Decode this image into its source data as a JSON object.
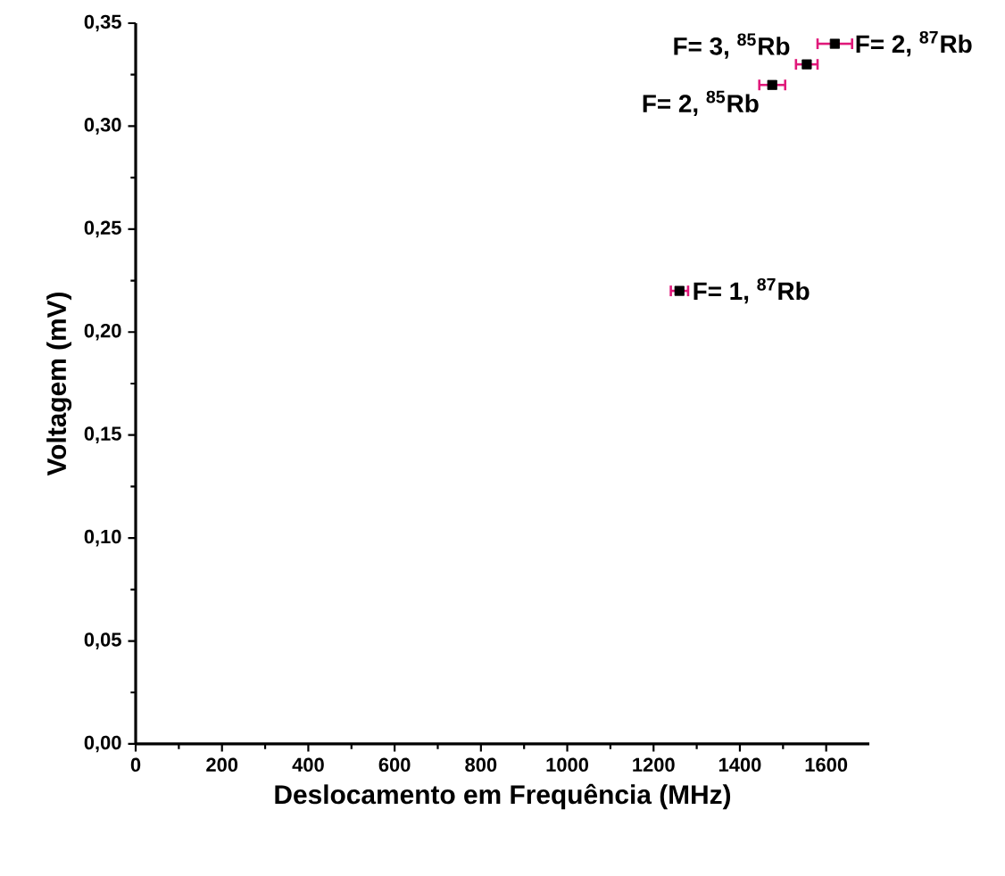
{
  "chart_data": {
    "type": "scatter",
    "xlabel": "Deslocamento em Frequência (MHz)",
    "ylabel": "Voltagem (mV)",
    "x": [
      1260,
      1475,
      1555,
      1620
    ],
    "values": [
      0.22,
      0.32,
      0.33,
      0.34
    ],
    "xerrors": [
      20,
      30,
      25,
      40
    ],
    "color": "#000000",
    "marker": "square",
    "xlim": [
      0,
      1700
    ],
    "ylim": [
      0,
      0.35
    ],
    "xticks": [
      0,
      200,
      400,
      600,
      800,
      1000,
      1200,
      1400,
      1600
    ],
    "yticks": [
      {
        "value": 0,
        "label": "0,00"
      },
      {
        "value": 0.05,
        "label": "0,05"
      },
      {
        "value": 0.1,
        "label": "0,10"
      },
      {
        "value": 0.15,
        "label": "0,15"
      },
      {
        "value": 0.2,
        "label": "0,20"
      },
      {
        "value": 0.25,
        "label": "0,25"
      },
      {
        "value": 0.3,
        "label": "0,30"
      },
      {
        "value": 0.35,
        "label": "0,35"
      }
    ],
    "annotations": [
      {
        "text": "F= 1, $^{87}$Rb",
        "x": 1260,
        "y": 0.22
      },
      {
        "text": "F= 2, $^{85}$Rb",
        "x": 1475,
        "y": 0.32
      },
      {
        "text": "F= 3, $^{85}$Rb",
        "x": 1555,
        "y": 0.33
      },
      {
        "text": "F= 2, $^{87}$Rb",
        "x": 1620,
        "y": 0.34
      }
    ]
  }
}
